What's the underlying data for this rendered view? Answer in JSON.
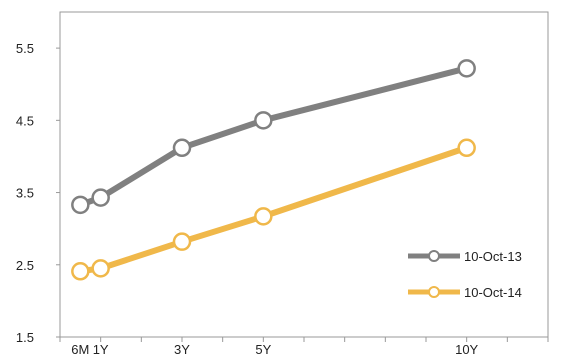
{
  "chart_data": {
    "type": "line",
    "x": [
      0.5,
      1,
      3,
      5,
      10
    ],
    "x_tick_labels": [
      {
        "x": 0.5,
        "label": "6M"
      },
      {
        "x": 1,
        "label": "1Y"
      },
      {
        "x": 3,
        "label": "3Y"
      },
      {
        "x": 5,
        "label": "5Y"
      },
      {
        "x": 10,
        "label": "10Y"
      }
    ],
    "xlim": [
      0,
      12
    ],
    "ylim": [
      1.5,
      6.0
    ],
    "y_ticks": [
      1.5,
      2.5,
      3.5,
      4.5,
      5.5
    ],
    "y_tick_labels": [
      "1.5",
      "2.5",
      "3.5",
      "4.5",
      "5.5"
    ],
    "grid": false,
    "legend_position": "bottom-right",
    "series": [
      {
        "name": "10-Oct-13",
        "color": "#808080",
        "values": [
          3.33,
          3.43,
          4.12,
          4.5,
          5.22
        ]
      },
      {
        "name": "10-Oct-14",
        "color": "#f0b84a",
        "values": [
          2.41,
          2.45,
          2.82,
          3.17,
          4.12
        ]
      }
    ]
  }
}
